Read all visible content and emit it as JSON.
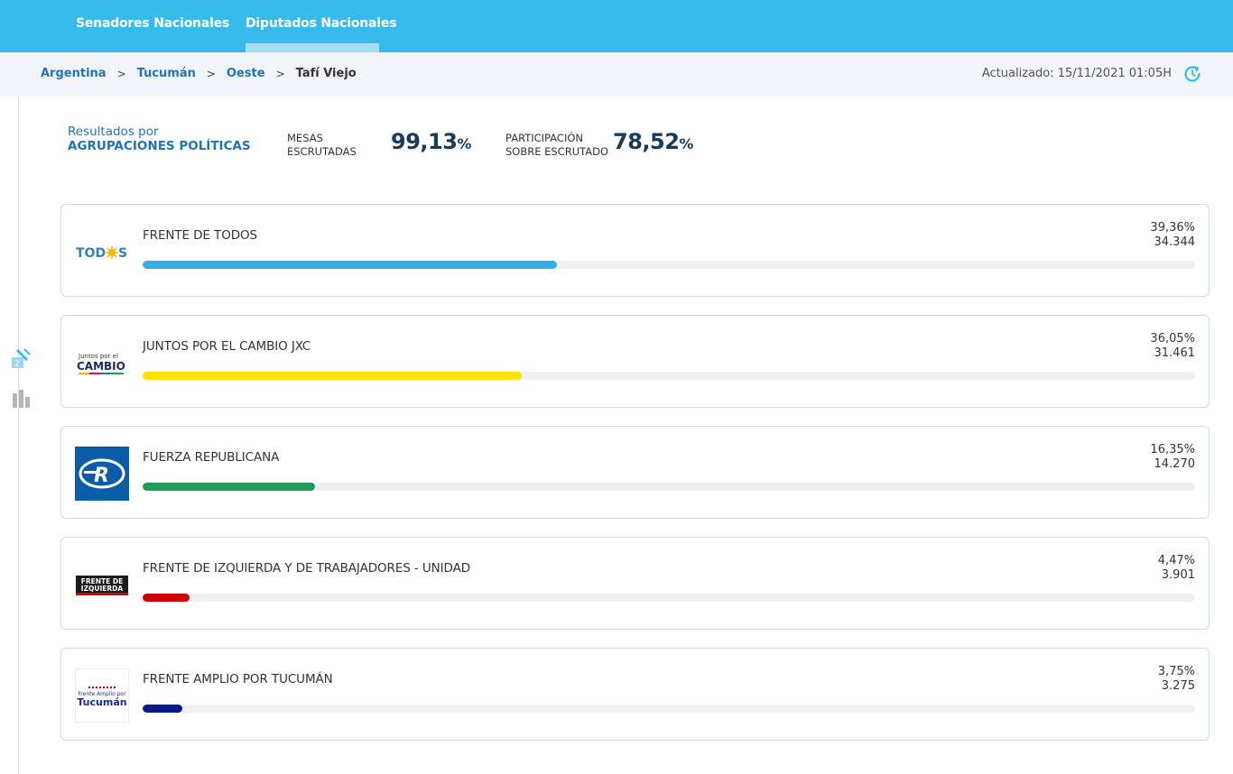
{
  "tabs": [
    {
      "label": "Senadores Nacionales",
      "active": false
    },
    {
      "label": "Diputados Nacionales",
      "active": true
    }
  ],
  "breadcrumb": {
    "items": [
      "Argentina",
      "Tucumán",
      "Oeste"
    ],
    "current": "Tafí Viejo",
    "separator": ">"
  },
  "updated": "Actualizado: 15/11/2021 01:05H",
  "summary": {
    "title_line1": "Resultados por",
    "title_line2": "AGRUPACIONES POLÍTICAS",
    "mesas_label_1": "MESAS",
    "mesas_label_2": "ESCRUTADAS",
    "mesas_value": "99,13",
    "participacion_label_1": "PARTICIPACIÓN",
    "participacion_label_2": "SOBRE ESCRUTADO",
    "participacion_value": "78,52",
    "percent_sign": "%"
  },
  "parties": [
    {
      "name": "FRENTE DE TODOS",
      "percent": "39,36%",
      "votes": "34.344",
      "share": 39.36,
      "color": "#37aee8",
      "logo": "todos-logo",
      "logo_text": "TOD",
      "logo_text_end": "S"
    },
    {
      "name": "JUNTOS POR EL CAMBIO JXC",
      "percent": "36,05%",
      "votes": "31.461",
      "share": 36.05,
      "color": "#fde400",
      "logo": "juntos-logo",
      "logo_text": "Juntos por el",
      "logo_text_end": "CAMBIO"
    },
    {
      "name": "FUERZA REPUBLICANA",
      "percent": "16,35%",
      "votes": "14.270",
      "share": 16.35,
      "color": "#1a9e5a",
      "logo": "fuerza-republicana-logo",
      "logo_text": "R",
      "logo_text_end": ""
    },
    {
      "name": "FRENTE DE IZQUIERDA Y DE TRABAJADORES - UNIDAD",
      "percent": "4,47%",
      "votes": "3.901",
      "share": 4.47,
      "color": "#cc0000",
      "logo": "frente-izquierda-logo",
      "logo_text": "FRENTE DE",
      "logo_text_end": "IZQUIERDA"
    },
    {
      "name": "FRENTE AMPLIO POR TUCUMÁN",
      "percent": "3,75%",
      "votes": "3.275",
      "share": 3.75,
      "color": "#0a1a8c",
      "logo": "frente-amplio-logo",
      "logo_text": "Frente Amplio por",
      "logo_text_end": "Tucumán"
    }
  ],
  "colors": {
    "topbar": "#37bbed",
    "link": "#1f73b7",
    "stat_value": "#1a3a5c"
  }
}
